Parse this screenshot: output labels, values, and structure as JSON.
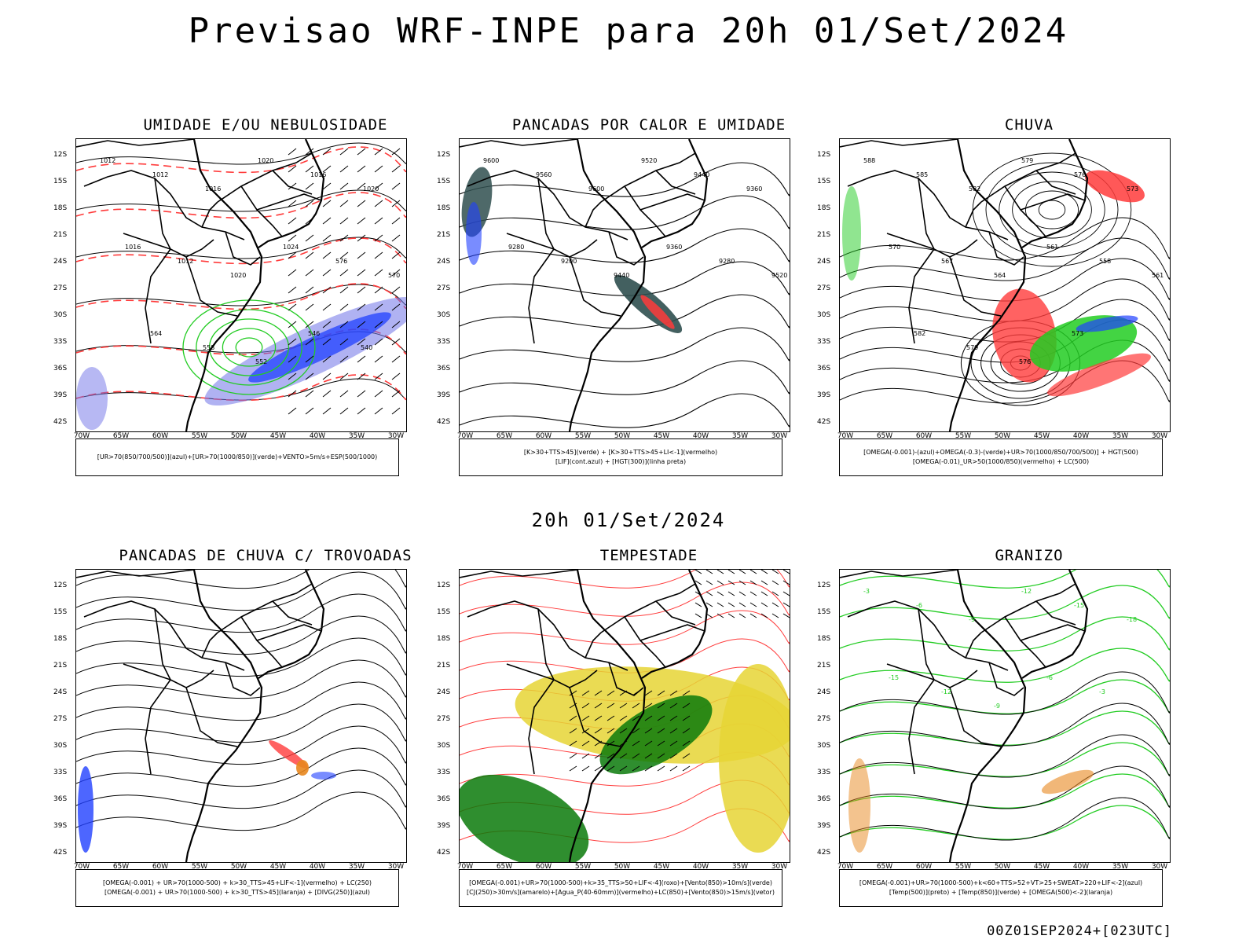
{
  "title": "Previsao WRF-INPE  para 20h 01/Set/2024",
  "subtitle": "20h 01/Set/2024",
  "footer": "00Z01SEP2024+[023UTC]",
  "axes": {
    "lat_labels": [
      "12S",
      "15S",
      "18S",
      "21S",
      "24S",
      "27S",
      "30S",
      "33S",
      "36S",
      "39S",
      "42S"
    ],
    "lon_labels": [
      "70W",
      "65W",
      "60W",
      "55W",
      "50W",
      "45W",
      "40W",
      "35W",
      "30W"
    ]
  },
  "panels": [
    {
      "id": "umidade",
      "title": "UMIDADE E/OU NEBULOSIDADE",
      "legend": [
        "[UR>70(850/700/500)](azul)+[UR>70(1000/850)](verde)+VENTO>5m/s+ESP(500/1000)"
      ],
      "contour_labels": [
        "1012",
        "1012",
        "1016",
        "1020",
        "1016",
        "1020",
        "1016",
        "1012",
        "1020",
        "1024",
        "576",
        "570",
        "564",
        "558",
        "552",
        "546",
        "540"
      ]
    },
    {
      "id": "pancadas-calor",
      "title": "PANCADAS POR CALOR E UMIDADE",
      "legend": [
        "[K>30+TTS>45](verde) + [K>30+TTS>45+LI<-1](vermelho)",
        "[LIF](cont.azul) + [HGT(300)](linha preta)"
      ],
      "contour_labels": [
        "9600",
        "9560",
        "9600",
        "9520",
        "9440",
        "9360",
        "9280",
        "9200",
        "9440",
        "9360",
        "9280",
        "9520"
      ]
    },
    {
      "id": "chuva",
      "title": "CHUVA",
      "legend": [
        "[OMEGA(-0.001)-(azul)+OMEGA(-0.3)-(verde)+UR>70(1000/850/700/500)] + HGT(500)",
        "[OMEGA(-0.01)_UR>50(1000/850)(vermelho) + LC(500)"
      ],
      "contour_labels": [
        "588",
        "585",
        "582",
        "579",
        "576",
        "573",
        "570",
        "567",
        "564",
        "561",
        "558",
        "561",
        "582",
        "579",
        "576",
        "573"
      ]
    },
    {
      "id": "pancadas-trovoadas",
      "title": "PANCADAS DE CHUVA C/ TROVOADAS",
      "legend": [
        "[OMEGA(-0.001) + UR>70(1000-500) + k>30_TTS>45+LIF<-1](vermelho) + LC(250)",
        "[OMEGA(-0.001) + UR>70(1000-500) + k>30_TTS>45](laranja) + [DIVG(250)](azul)"
      ],
      "contour_labels": []
    },
    {
      "id": "tempestade",
      "title": "TEMPESTADE",
      "legend": [
        "[OMEGA(-0.001)+UR>70(1000-500)+k>35_TTS>50+LIF<-4](roxo)+[Vento(850)>10m/s](verde)",
        "[CJ(250)>30m/s](amarelo)+[Agua_P(40-60mm)](vermelho)+LC(850)+[Vento(850)>15m/s](vetor)"
      ],
      "contour_labels": []
    },
    {
      "id": "granizo",
      "title": "GRANIZO",
      "legend": [
        "[OMEGA(-0.001)+UR>70(1000-500)+k<60+TTS>52+VT>25+SWEAT>220+LIF<-2](azul)",
        "[Temp(500)](preto) + [Temp(850)](verde) + [OMEGA(500)<-2](laranja)"
      ],
      "contour_labels": [
        "-3",
        "-6",
        "-9",
        "-12",
        "-15",
        "-18",
        "-15",
        "-12",
        "-9",
        "-6",
        "-3"
      ]
    }
  ],
  "colors": {
    "red": "#ff3b3b",
    "green": "#22cc22",
    "blue": "#2040ff",
    "purple": "#6f72e8",
    "yellow": "#e6d535",
    "darkgreen": "#0b7a0b",
    "orange": "#e8871e",
    "teal": "#2f4f4f"
  }
}
